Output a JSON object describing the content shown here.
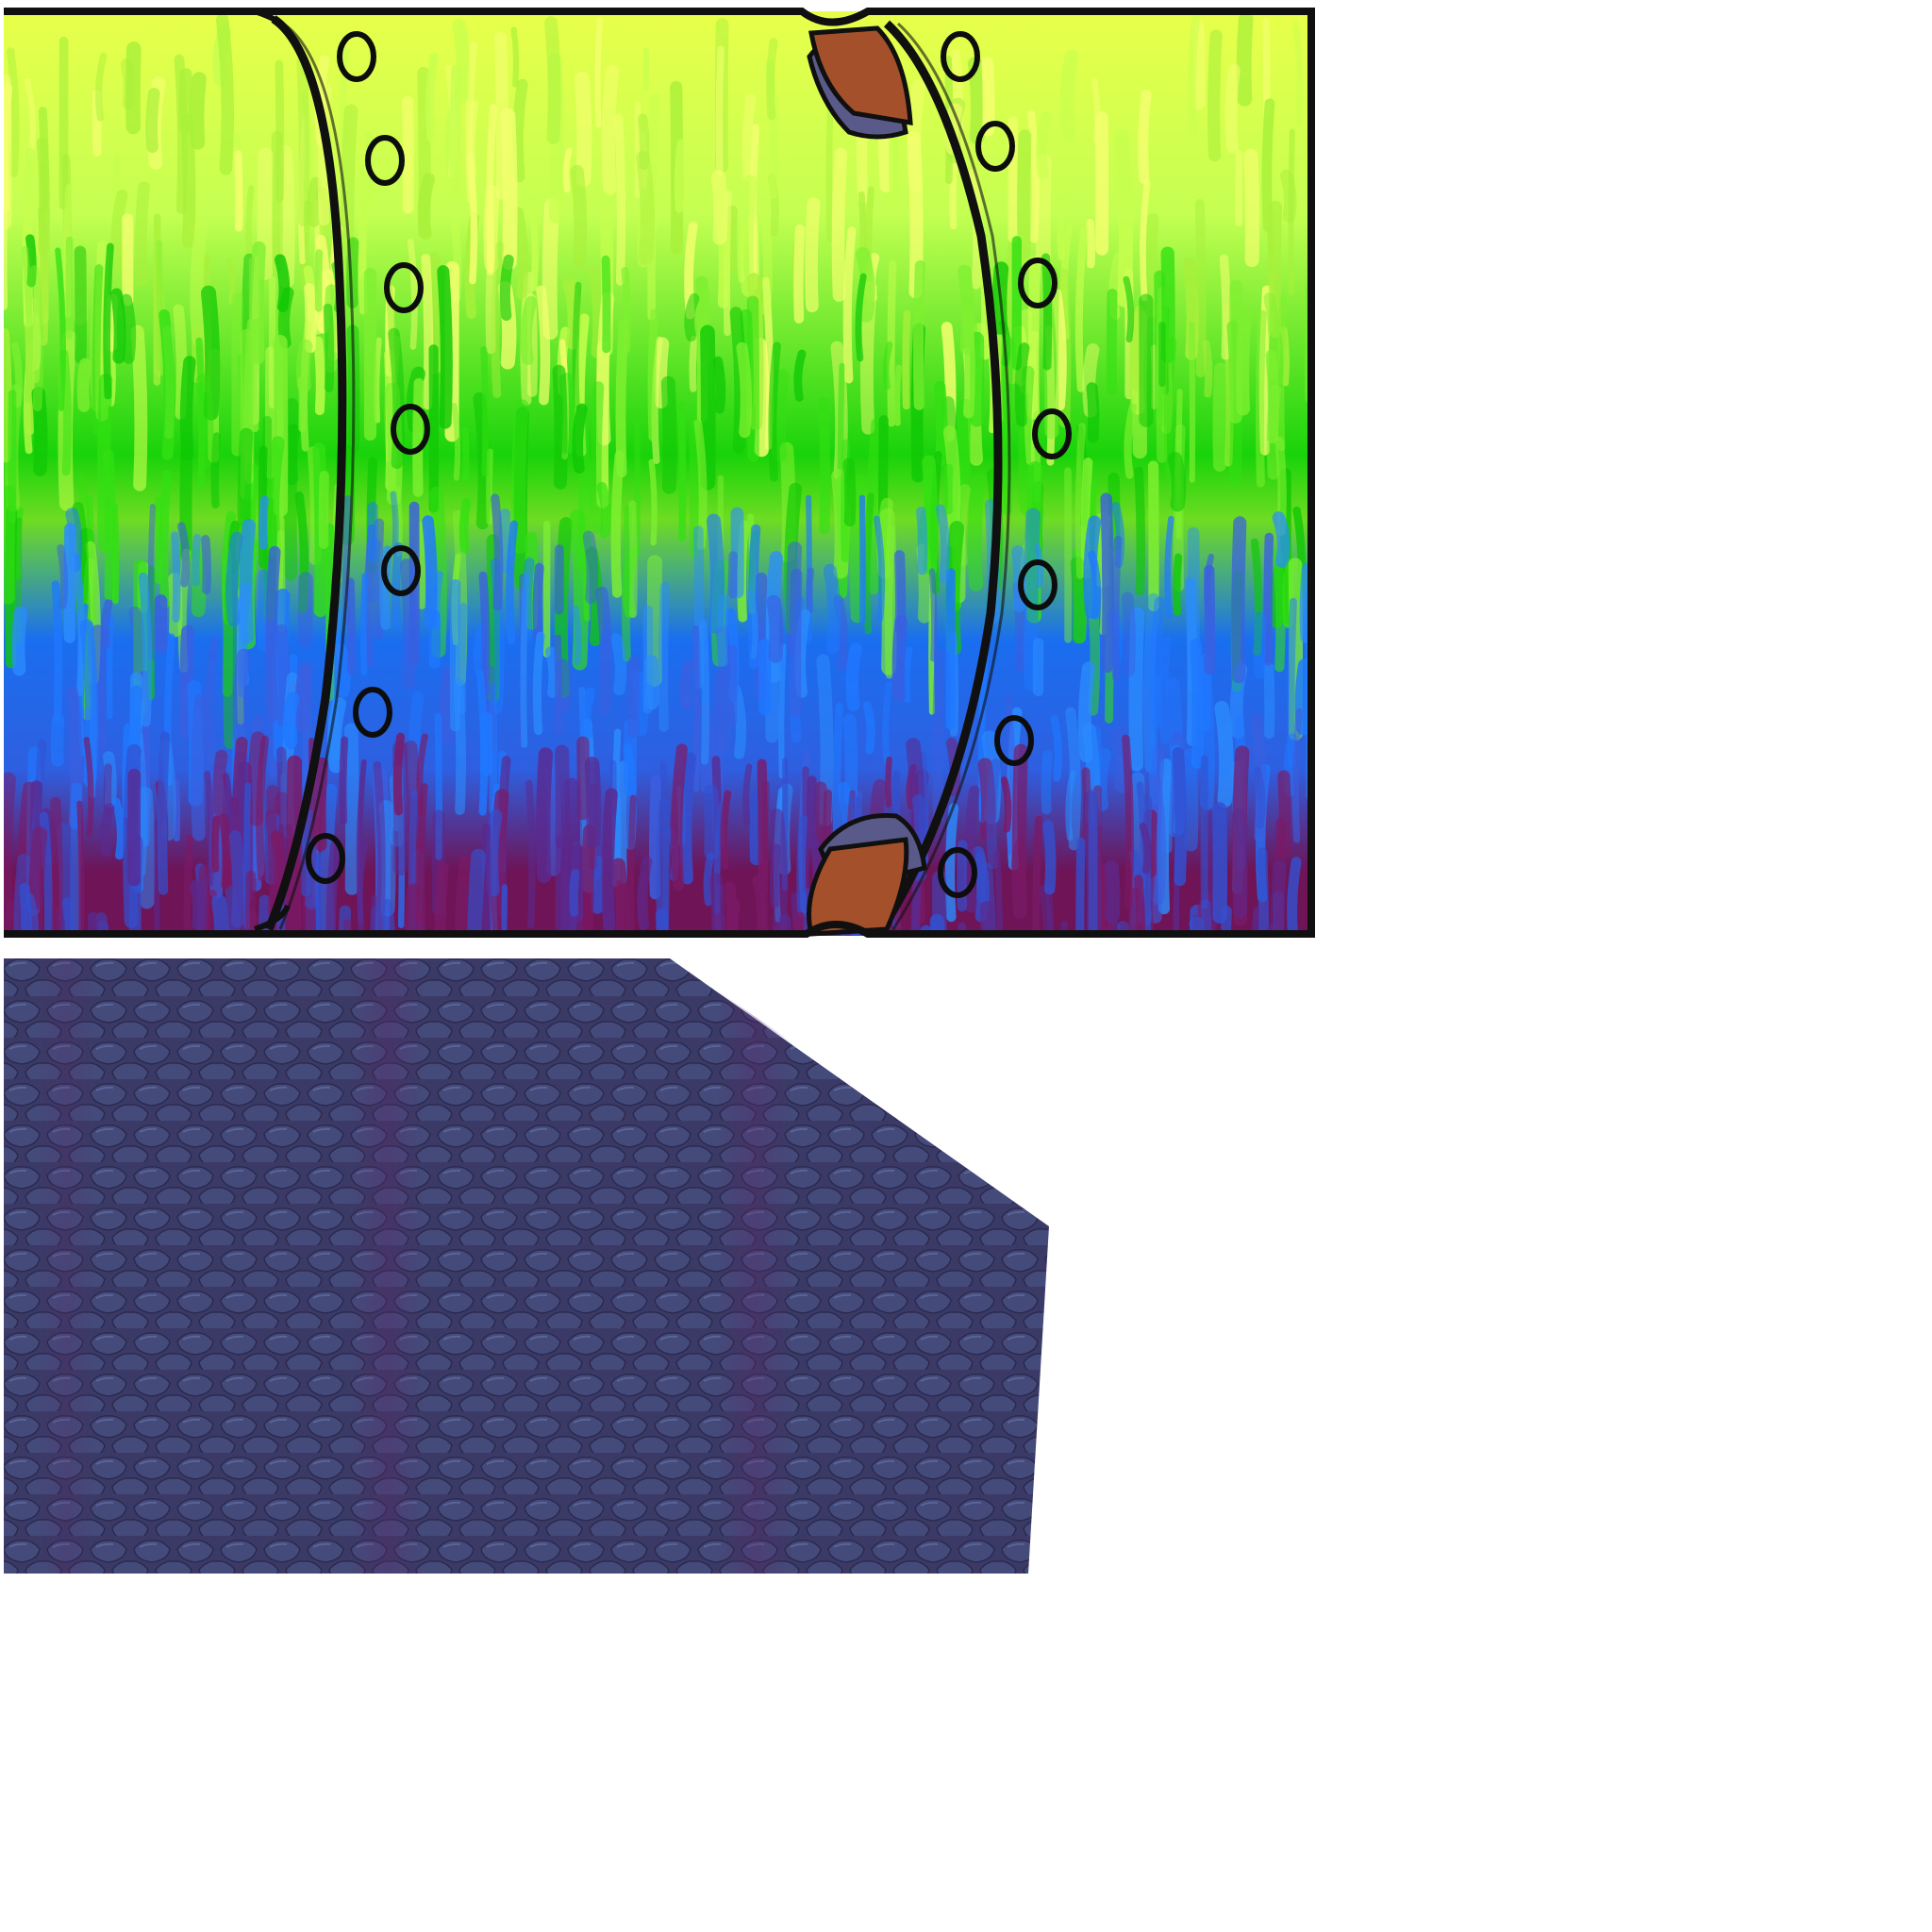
{
  "canvas": {
    "background": "#ffffff"
  },
  "pipe_panel": {
    "bands": [
      {
        "name": "yellow-green",
        "color": "#e8ff4a"
      },
      {
        "name": "lime",
        "color": "#c4ff52"
      },
      {
        "name": "green",
        "color": "#19d30a"
      },
      {
        "name": "blue",
        "color": "#1a6ef0"
      },
      {
        "name": "purple",
        "color": "#6e1457"
      }
    ],
    "outline_color": "#101010",
    "rivet_color": "#0d0d0d",
    "hinge_color": "#a4502a",
    "hinge_shadow_color": "#5a5a8a"
  },
  "scale_panel": {
    "base_color": "#3b3a66",
    "scale_color": "#444a7a",
    "scale_highlight": "#5a6496",
    "stripe_color": "#5a2a6a"
  }
}
